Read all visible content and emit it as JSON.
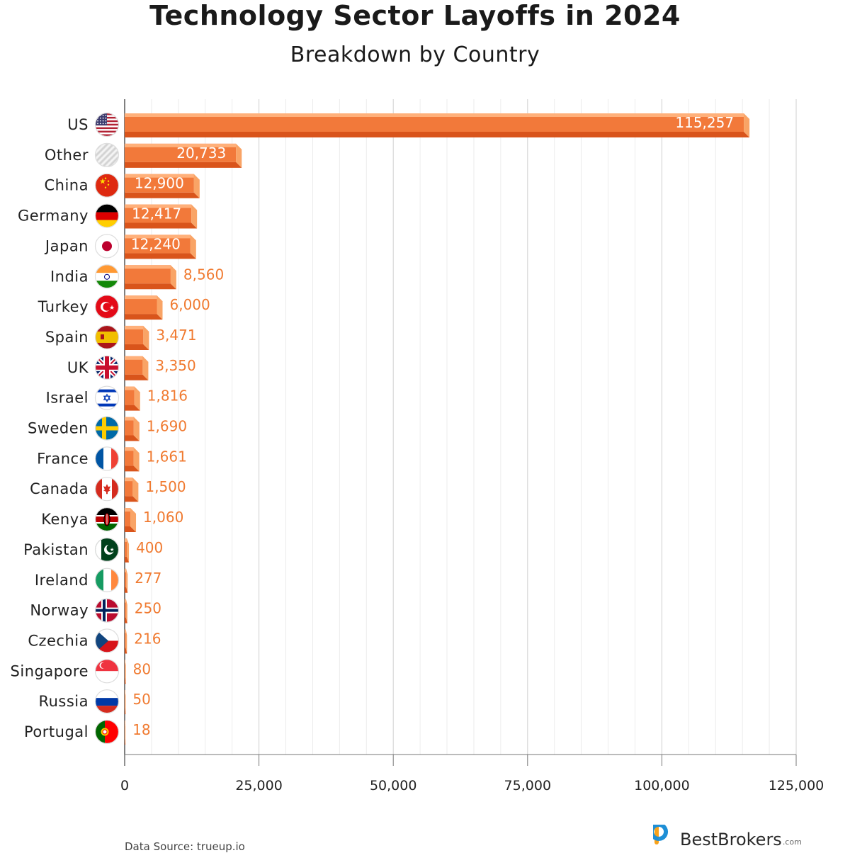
{
  "title": "Technology Sector Layoffs in 2024",
  "subtitle": "Breakdown by Country",
  "source": "Data Source: trueup.io",
  "brand": {
    "name": "BestBrokers",
    "suffix": ".com"
  },
  "colors": {
    "bar_front": "#F2793A",
    "bar_top": "#FFB07A",
    "bar_side": "#F9A466",
    "bar_bottom": "#D9541B",
    "value_label": "#F07A30",
    "grid_major": "#cfcfcf",
    "grid_minor": "#ececec"
  },
  "chart_data": {
    "type": "bar",
    "orientation": "horizontal",
    "categories": [
      "US",
      "Other",
      "China",
      "Germany",
      "Japan",
      "India",
      "Turkey",
      "Spain",
      "UK",
      "Israel",
      "Sweden",
      "France",
      "Canada",
      "Kenya",
      "Pakistan",
      "Ireland",
      "Norway",
      "Czechia",
      "Singapore",
      "Russia",
      "Portugal"
    ],
    "values": [
      115257,
      20733,
      12900,
      12417,
      12240,
      8560,
      6000,
      3471,
      3350,
      1816,
      1690,
      1661,
      1500,
      1060,
      400,
      277,
      250,
      216,
      80,
      50,
      18
    ],
    "value_labels": [
      "115,257",
      "20,733",
      "12,900",
      "12,417",
      "12,240",
      "8,560",
      "6,000",
      "3,471",
      "3,350",
      "1,816",
      "1,690",
      "1,661",
      "1,500",
      "1,060",
      "400",
      "277",
      "250",
      "216",
      "80",
      "50",
      "18"
    ],
    "xlim": [
      0,
      125000
    ],
    "xticks": [
      0,
      25000,
      50000,
      75000,
      100000,
      125000
    ],
    "xtick_labels": [
      "0",
      "25,000",
      "50,000",
      "75,000",
      "100,000",
      "125,000"
    ],
    "grid": true,
    "icons": [
      "us-flag-icon",
      "other-hatched-icon",
      "china-flag-icon",
      "germany-flag-icon",
      "japan-flag-icon",
      "india-flag-icon",
      "turkey-flag-icon",
      "spain-flag-icon",
      "uk-flag-icon",
      "israel-flag-icon",
      "sweden-flag-icon",
      "france-flag-icon",
      "canada-flag-icon",
      "kenya-flag-icon",
      "pakistan-flag-icon",
      "ireland-flag-icon",
      "norway-flag-icon",
      "czechia-flag-icon",
      "singapore-flag-icon",
      "russia-flag-icon",
      "portugal-flag-icon"
    ]
  }
}
